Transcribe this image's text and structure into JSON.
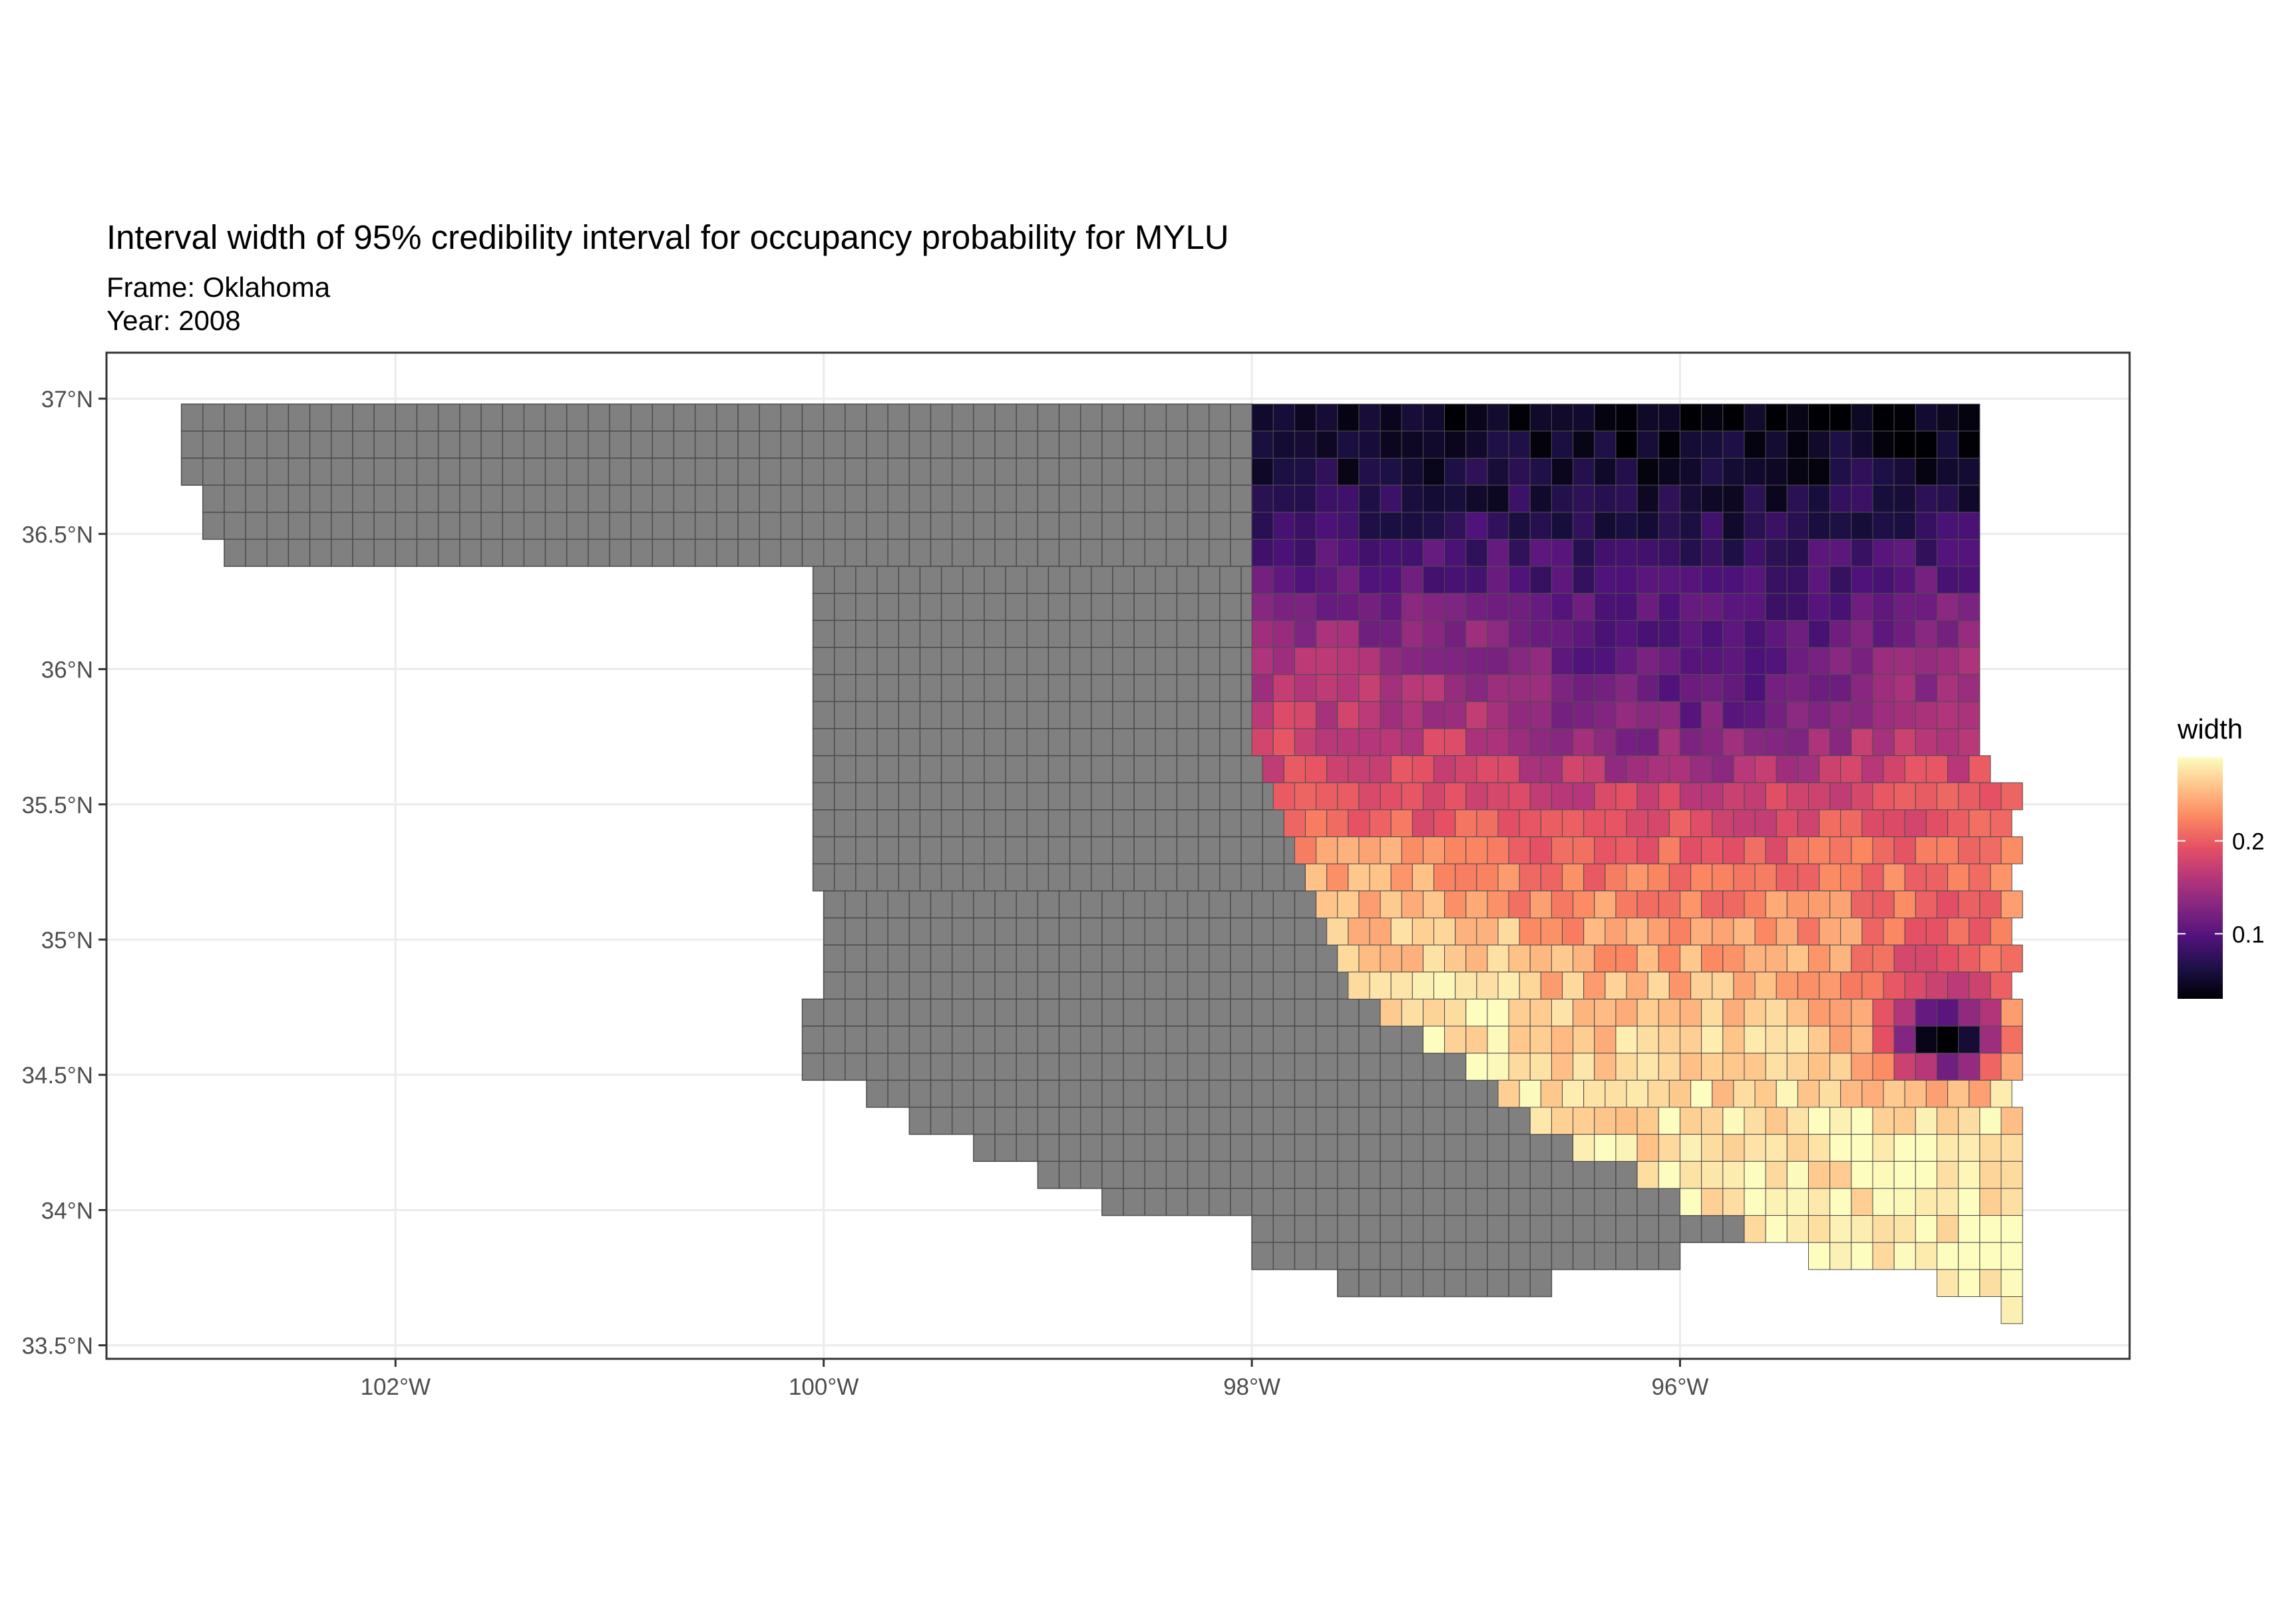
{
  "title": "Interval width of 95% credibility interval for occupancy probability for MYLU",
  "subtitle_lines": [
    "Frame: Oklahoma",
    "Year: 2008"
  ],
  "axes": {
    "x_ticks": [
      {
        "lon": -102,
        "label": "102°W"
      },
      {
        "lon": -100,
        "label": "100°W"
      },
      {
        "lon": -98,
        "label": "98°W"
      },
      {
        "lon": -96,
        "label": "96°W"
      }
    ],
    "y_ticks": [
      {
        "lat": 37,
        "label": "37°N"
      },
      {
        "lat": 36.5,
        "label": "36.5°N"
      },
      {
        "lat": 36,
        "label": "36°N"
      },
      {
        "lat": 35.5,
        "label": "35.5°N"
      },
      {
        "lat": 35,
        "label": "35°N"
      },
      {
        "lat": 34.5,
        "label": "34.5°N"
      },
      {
        "lat": 34,
        "label": "34°N"
      },
      {
        "lat": 33.5,
        "label": "33.5°N"
      }
    ],
    "lon_range": [
      -103.35,
      -93.9
    ],
    "lat_range": [
      33.45,
      37.17
    ],
    "grid": true
  },
  "legend": {
    "title": "width",
    "min": 0.03,
    "max": 0.29,
    "breaks": [
      {
        "value": 0.1,
        "label": "0.1"
      },
      {
        "value": 0.2,
        "label": "0.2"
      }
    ],
    "palette": "magma",
    "position": "right"
  },
  "map_data": {
    "cell_deg": 0.1,
    "na_fill": "#808080",
    "cell_border": "#4d4d4d",
    "gray_region_rows": [
      [
        36.93,
        -103.0,
        -98.0
      ],
      [
        36.83,
        -103.0,
        -98.0
      ],
      [
        36.73,
        -103.0,
        -98.0
      ],
      [
        36.63,
        -102.9,
        -98.0
      ],
      [
        36.53,
        -102.9,
        -98.0
      ],
      [
        36.43,
        -102.8,
        -98.0
      ],
      [
        36.33,
        -100.05,
        -98.0
      ],
      [
        36.23,
        -100.05,
        -98.0
      ],
      [
        36.13,
        -100.05,
        -98.0
      ],
      [
        36.03,
        -100.05,
        -98.0
      ],
      [
        35.93,
        -100.05,
        -98.0
      ],
      [
        35.83,
        -100.05,
        -98.0
      ],
      [
        35.73,
        -100.05,
        -98.0
      ],
      [
        35.63,
        -100.05,
        -97.95
      ],
      [
        35.53,
        -100.05,
        -97.9
      ],
      [
        35.43,
        -100.05,
        -97.85
      ],
      [
        35.33,
        -100.05,
        -97.8
      ],
      [
        35.23,
        -100.05,
        -97.75
      ],
      [
        35.13,
        -100.0,
        -97.7
      ],
      [
        35.03,
        -100.0,
        -97.65
      ],
      [
        34.93,
        -100.0,
        -97.6
      ],
      [
        34.83,
        -100.0,
        -97.55
      ],
      [
        34.73,
        -100.1,
        -97.4
      ],
      [
        34.63,
        -100.1,
        -97.2
      ],
      [
        34.53,
        -100.1,
        -97.0
      ],
      [
        34.43,
        -99.8,
        -96.85
      ],
      [
        34.33,
        -99.6,
        -96.7
      ],
      [
        34.23,
        -99.3,
        -96.5
      ],
      [
        34.13,
        -99.0,
        -96.2
      ],
      [
        34.03,
        -98.7,
        -96.0
      ],
      [
        33.93,
        -98.0,
        -95.7
      ],
      [
        33.83,
        -98.0,
        -96.0
      ],
      [
        33.73,
        -97.6,
        -96.6
      ]
    ],
    "data_region_rows": [
      [
        36.93,
        -98.0,
        -94.65
      ],
      [
        36.83,
        -98.0,
        -94.65
      ],
      [
        36.73,
        -98.0,
        -94.65
      ],
      [
        36.63,
        -98.0,
        -94.65
      ],
      [
        36.53,
        -98.0,
        -94.65
      ],
      [
        36.43,
        -98.0,
        -94.65
      ],
      [
        36.33,
        -98.0,
        -94.65
      ],
      [
        36.23,
        -98.0,
        -94.65
      ],
      [
        36.13,
        -98.0,
        -94.6
      ],
      [
        36.03,
        -98.0,
        -94.6
      ],
      [
        35.93,
        -98.0,
        -94.6
      ],
      [
        35.83,
        -98.0,
        -94.6
      ],
      [
        35.73,
        -98.0,
        -94.6
      ],
      [
        35.63,
        -97.95,
        -94.6
      ],
      [
        35.53,
        -97.9,
        -94.45
      ],
      [
        35.43,
        -97.85,
        -94.45
      ],
      [
        35.33,
        -97.8,
        -94.45
      ],
      [
        35.23,
        -97.75,
        -94.45
      ],
      [
        35.13,
        -97.7,
        -94.45
      ],
      [
        35.03,
        -97.65,
        -94.45
      ],
      [
        34.93,
        -97.6,
        -94.45
      ],
      [
        34.83,
        -97.55,
        -94.45
      ],
      [
        34.73,
        -97.4,
        -94.45
      ],
      [
        34.63,
        -97.2,
        -94.45
      ],
      [
        34.53,
        -97.0,
        -94.45
      ],
      [
        34.43,
        -96.85,
        -94.45
      ],
      [
        34.33,
        -96.7,
        -94.45
      ],
      [
        34.23,
        -96.5,
        -94.45
      ],
      [
        34.13,
        -96.2,
        -94.45
      ],
      [
        34.03,
        -96.0,
        -94.45
      ],
      [
        33.93,
        -95.7,
        -94.45
      ],
      [
        33.83,
        -95.4,
        -94.45
      ],
      [
        33.73,
        -94.8,
        -94.45
      ],
      [
        33.63,
        -94.5,
        -94.45
      ]
    ],
    "width_estimate": "north-south gradient: ~0.03 near 37°N, ~0.13 at 36.2°N, ~0.20 at 35.5°N, ~0.26 at 34.7°N, ~0.29 near 33.8°N; low-width pocket (~0.05) near 34.6°N, 94.7°W"
  }
}
